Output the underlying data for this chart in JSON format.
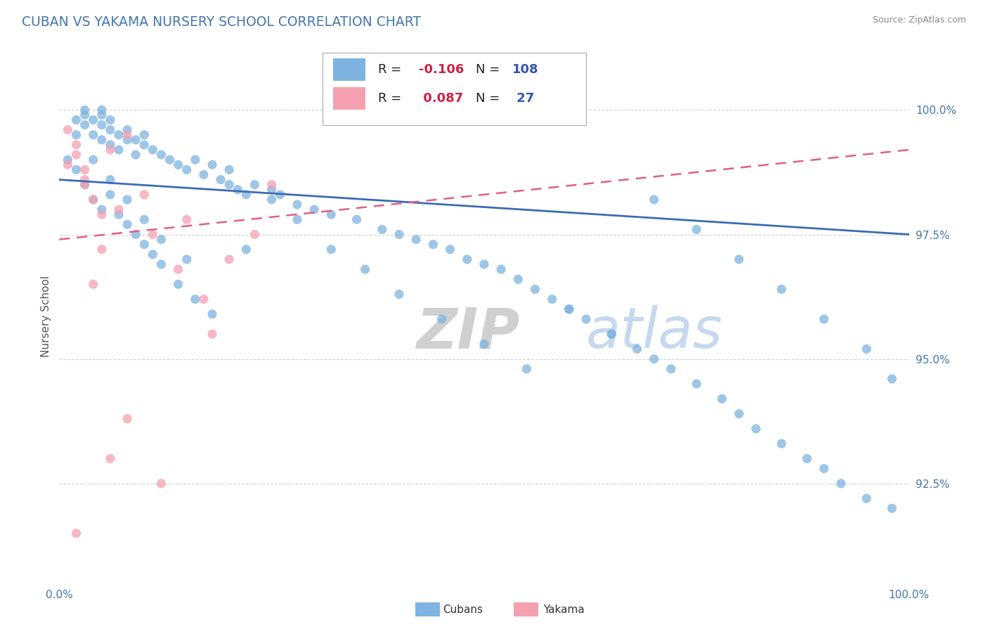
{
  "title": "CUBAN VS YAKAMA NURSERY SCHOOL CORRELATION CHART",
  "source_text": "Source: ZipAtlas.com",
  "ylabel": "Nursery School",
  "x_min": 0.0,
  "x_max": 100.0,
  "y_min": 90.5,
  "y_max": 101.2,
  "yticks": [
    92.5,
    95.0,
    97.5,
    100.0
  ],
  "ytick_labels": [
    "92.5%",
    "95.0%",
    "97.5%",
    "100.0%"
  ],
  "blue_R": -0.106,
  "blue_N": 108,
  "pink_R": 0.087,
  "pink_N": 27,
  "blue_color": "#7EB3E0",
  "pink_color": "#F4A0B0",
  "blue_line_color": "#3B6CB5",
  "pink_line_color": "#E06080",
  "background_color": "#FFFFFF",
  "grid_color": "#CCCCCC",
  "title_color": "#4477AA",
  "axis_label_color": "#4477AA",
  "watermark_zip_color": "#D0D0D0",
  "watermark_atlas_color": "#C5D8EE",
  "legend_text_color": "#222222",
  "legend_R_color": "#CC2244",
  "legend_N_color": "#3355AA",
  "blue_x": [
    1,
    2,
    2,
    3,
    3,
    3,
    4,
    4,
    5,
    5,
    5,
    5,
    6,
    6,
    6,
    7,
    7,
    8,
    8,
    9,
    9,
    10,
    10,
    11,
    12,
    13,
    14,
    15,
    16,
    17,
    18,
    19,
    20,
    21,
    22,
    23,
    25,
    26,
    28,
    30,
    32,
    35,
    38,
    40,
    42,
    44,
    46,
    48,
    50,
    52,
    54,
    56,
    58,
    60,
    62,
    65,
    68,
    70,
    72,
    75,
    78,
    80,
    82,
    85,
    88,
    90,
    92,
    95,
    98,
    2,
    3,
    4,
    5,
    6,
    7,
    8,
    9,
    10,
    11,
    12,
    14,
    16,
    18,
    20,
    22,
    25,
    28,
    32,
    36,
    40,
    45,
    50,
    55,
    60,
    65,
    70,
    75,
    80,
    85,
    90,
    95,
    98,
    4,
    6,
    8,
    10,
    12,
    15
  ],
  "blue_y": [
    99.0,
    99.8,
    99.5,
    99.9,
    99.7,
    100.0,
    99.5,
    99.8,
    99.4,
    99.7,
    100.0,
    99.9,
    99.3,
    99.6,
    99.8,
    99.2,
    99.5,
    99.4,
    99.6,
    99.1,
    99.4,
    99.3,
    99.5,
    99.2,
    99.1,
    99.0,
    98.9,
    98.8,
    99.0,
    98.7,
    98.9,
    98.6,
    98.5,
    98.4,
    98.3,
    98.5,
    98.2,
    98.3,
    98.1,
    98.0,
    97.9,
    97.8,
    97.6,
    97.5,
    97.4,
    97.3,
    97.2,
    97.0,
    96.9,
    96.8,
    96.6,
    96.4,
    96.2,
    96.0,
    95.8,
    95.5,
    95.2,
    95.0,
    94.8,
    94.5,
    94.2,
    93.9,
    93.6,
    93.3,
    93.0,
    92.8,
    92.5,
    92.2,
    92.0,
    98.8,
    98.5,
    98.2,
    98.0,
    98.3,
    97.9,
    97.7,
    97.5,
    97.3,
    97.1,
    96.9,
    96.5,
    96.2,
    95.9,
    98.8,
    97.2,
    98.4,
    97.8,
    97.2,
    96.8,
    96.3,
    95.8,
    95.3,
    94.8,
    96.0,
    95.5,
    98.2,
    97.6,
    97.0,
    96.4,
    95.8,
    95.2,
    94.6,
    99.0,
    98.6,
    98.2,
    97.8,
    97.4,
    97.0
  ],
  "pink_x": [
    1,
    2,
    2,
    3,
    3,
    4,
    5,
    6,
    7,
    8,
    10,
    11,
    14,
    17,
    20,
    23,
    1,
    3,
    5,
    8,
    12,
    4,
    6,
    15,
    25,
    2,
    18
  ],
  "pink_y": [
    99.6,
    99.3,
    99.1,
    98.8,
    98.5,
    98.2,
    97.9,
    99.2,
    98.0,
    99.5,
    98.3,
    97.5,
    96.8,
    96.2,
    97.0,
    97.5,
    98.9,
    98.6,
    97.2,
    93.8,
    92.5,
    96.5,
    93.0,
    97.8,
    98.5,
    91.5,
    95.5
  ],
  "blue_line_x0": 0,
  "blue_line_x1": 100,
  "blue_line_y0": 98.6,
  "blue_line_y1": 97.5,
  "pink_line_x0": 0,
  "pink_line_x1": 100,
  "pink_line_y0": 97.4,
  "pink_line_y1": 99.2
}
